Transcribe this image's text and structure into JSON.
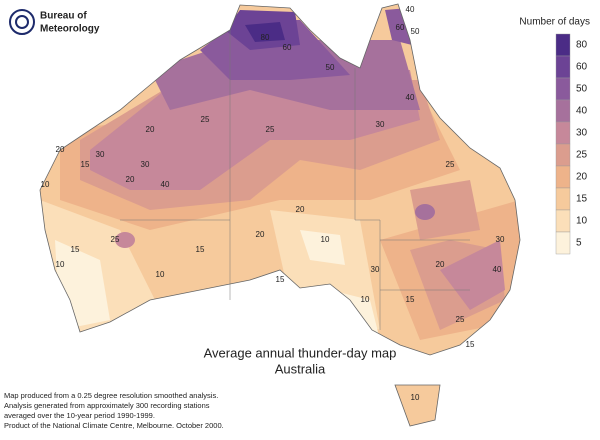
{
  "header": {
    "logo": [
      "Bureau of",
      "Meteorology"
    ]
  },
  "legend": {
    "title": "Number of days",
    "items": [
      {
        "label": "80",
        "color": "#4b2c86"
      },
      {
        "label": "60",
        "color": "#6c4395"
      },
      {
        "label": "50",
        "color": "#8a5a9c"
      },
      {
        "label": "40",
        "color": "#a6719c"
      },
      {
        "label": "30",
        "color": "#c6889a"
      },
      {
        "label": "25",
        "color": "#db9d8e"
      },
      {
        "label": "20",
        "color": "#eeb38a"
      },
      {
        "label": "15",
        "color": "#f6ca9c"
      },
      {
        "label": "10",
        "color": "#fbdfb9"
      },
      {
        "label": "5",
        "color": "#fdf2dc"
      }
    ]
  },
  "title": [
    "Average annual thunder-day map",
    "Australia"
  ],
  "footnote": [
    "Map produced from a 0.25 degree resolution smoothed analysis.",
    "Analysis generated from approximately 300 recording stations",
    "averaged over the 10-year period 1990-1999.",
    "Product of the National Climate Centre, Melbourne.  October 2000."
  ],
  "map": {
    "contour_labels": [
      "80",
      "60",
      "50",
      "60",
      "40",
      "50",
      "40",
      "30",
      "30",
      "25",
      "20",
      "20",
      "30",
      "40",
      "25",
      "20",
      "15",
      "10",
      "10",
      "25",
      "15",
      "10",
      "15",
      "20",
      "25",
      "30",
      "40",
      "25",
      "15",
      "10",
      "10",
      "20",
      "30",
      "20",
      "15",
      "10",
      "15"
    ]
  }
}
